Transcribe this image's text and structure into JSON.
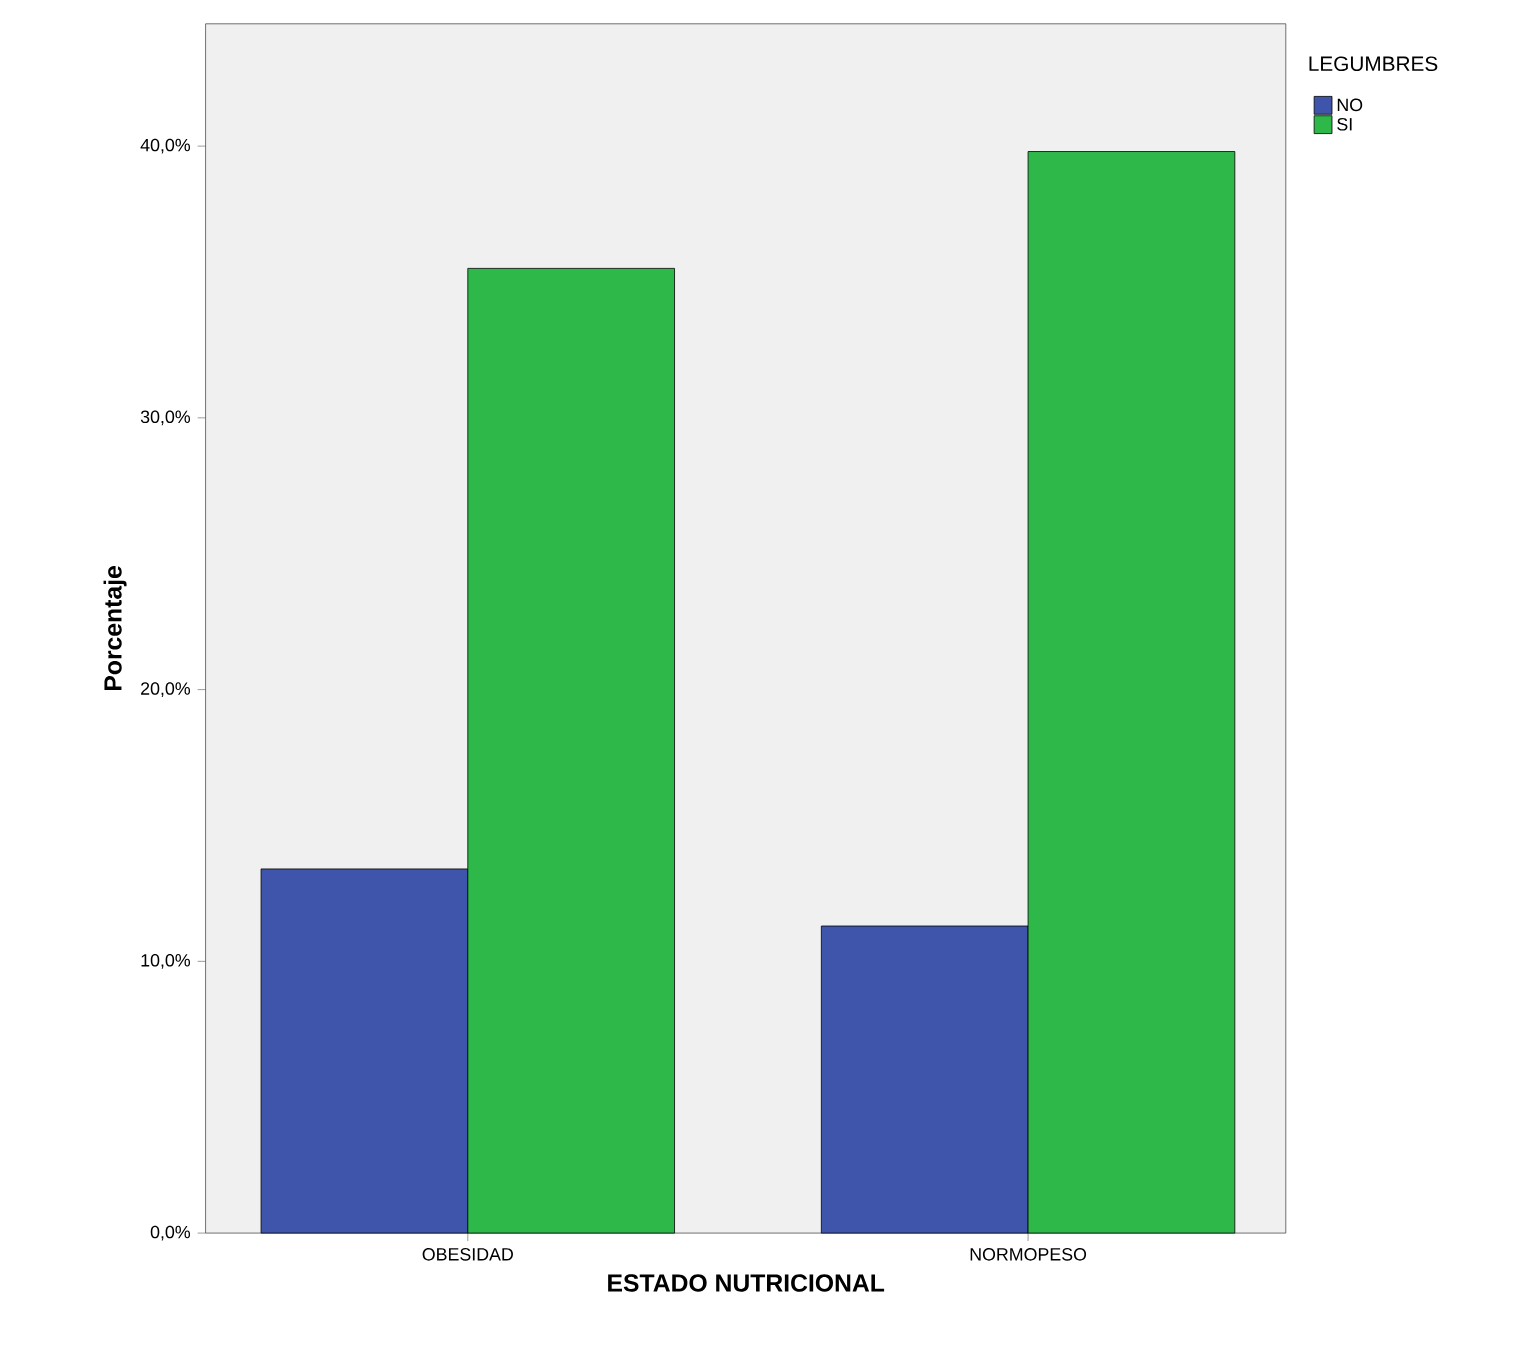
{
  "chart_data": {
    "type": "bar",
    "xlabel": "ESTADO NUTRICIONAL",
    "ylabel": "Porcentaje",
    "legend_title": "LEGUMBRES",
    "legend": "top right",
    "categories": [
      "OBESIDAD",
      "NORMOPESO"
    ],
    "series": [
      {
        "name": "NO",
        "color": "#3e55ab",
        "values": [
          13.4,
          11.3
        ]
      },
      {
        "name": "SI",
        "color": "#2fb84a",
        "values": [
          35.5,
          39.8
        ]
      }
    ],
    "ylim": [
      0,
      44.5
    ],
    "yticks": [
      {
        "value": 0,
        "label": "0,0%"
      },
      {
        "value": 10,
        "label": "10,0%"
      },
      {
        "value": 20,
        "label": "20,0%"
      },
      {
        "value": 30,
        "label": "30,0%"
      },
      {
        "value": 40,
        "label": "40,0%"
      }
    ]
  }
}
